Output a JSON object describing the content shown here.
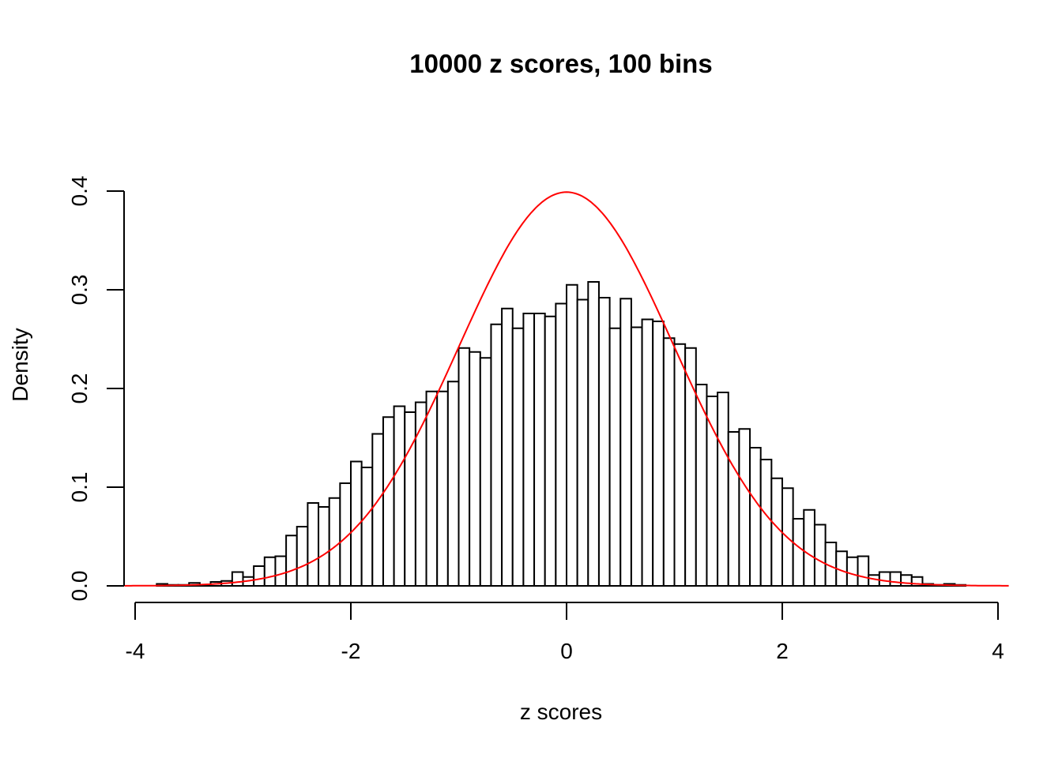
{
  "chart_data": {
    "type": "bar",
    "title": "10000 z scores, 100 bins",
    "xlabel": "z scores",
    "ylabel": "Density",
    "xlim": [
      -4,
      4
    ],
    "ylim": [
      0,
      0.4
    ],
    "x_ticks": [
      "-4",
      "-2",
      "0",
      "2",
      "4"
    ],
    "y_ticks": [
      "0.0",
      "0.1",
      "0.2",
      "0.3",
      "0.4"
    ],
    "grid": false,
    "bin_width": 0.1,
    "bin_starts": [
      -3.8,
      -3.7,
      -3.6,
      -3.5,
      -3.4,
      -3.3,
      -3.2,
      -3.1,
      -3.0,
      -2.9,
      -2.8,
      -2.7,
      -2.6,
      -2.5,
      -2.4,
      -2.3,
      -2.2,
      -2.1,
      -2.0,
      -1.9,
      -1.8,
      -1.7,
      -1.6,
      -1.5,
      -1.4,
      -1.3,
      -1.2,
      -1.1,
      -1.0,
      -0.9,
      -0.8,
      -0.7,
      -0.6,
      -0.5,
      -0.4,
      -0.3,
      -0.2,
      -0.1,
      0.0,
      0.1,
      0.2,
      0.3,
      0.4,
      0.5,
      0.6,
      0.7,
      0.8,
      0.9,
      1.0,
      1.1,
      1.2,
      1.3,
      1.4,
      1.5,
      1.6,
      1.7,
      1.8,
      1.9,
      2.0,
      2.1,
      2.2,
      2.3,
      2.4,
      2.5,
      2.6,
      2.7,
      2.8,
      2.9,
      3.0,
      3.1,
      3.2,
      3.3,
      3.4,
      3.5,
      3.6
    ],
    "density": [
      0.002,
      0.001,
      0.001,
      0.003,
      0.001,
      0.004,
      0.005,
      0.014,
      0.009,
      0.02,
      0.029,
      0.03,
      0.051,
      0.06,
      0.084,
      0.08,
      0.089,
      0.104,
      0.126,
      0.12,
      0.154,
      0.171,
      0.182,
      0.176,
      0.186,
      0.197,
      0.197,
      0.207,
      0.241,
      0.237,
      0.231,
      0.265,
      0.281,
      0.261,
      0.276,
      0.276,
      0.273,
      0.286,
      0.305,
      0.29,
      0.308,
      0.292,
      0.261,
      0.291,
      0.262,
      0.27,
      0.268,
      0.251,
      0.245,
      0.241,
      0.204,
      0.192,
      0.196,
      0.156,
      0.159,
      0.14,
      0.128,
      0.109,
      0.099,
      0.068,
      0.077,
      0.062,
      0.044,
      0.035,
      0.029,
      0.03,
      0.011,
      0.014,
      0.014,
      0.011,
      0.009,
      0.002,
      0.001,
      0.002,
      0.001
    ],
    "overlay": {
      "type": "line",
      "function": "standard normal density",
      "mean": 0,
      "sd": 1,
      "color": "#ff0000"
    },
    "bar_fill": "#ffffff",
    "bar_stroke": "#000000"
  }
}
